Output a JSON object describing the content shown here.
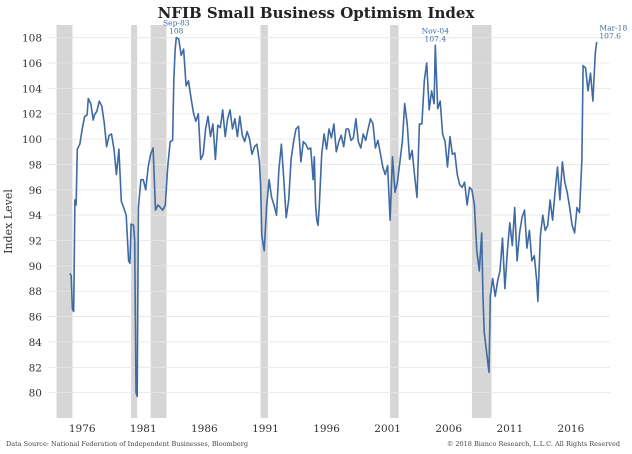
{
  "chart_data": {
    "type": "line",
    "title": "NFIB Small Business Optimism Index",
    "ylabel": "Index Level",
    "xlabel": "",
    "xlim": [
      1973.2,
      2019.2
    ],
    "ylim": [
      78,
      109
    ],
    "yticks": [
      80,
      82,
      84,
      86,
      88,
      90,
      92,
      94,
      96,
      98,
      100,
      102,
      104,
      106,
      108
    ],
    "xticks": [
      1976,
      1981,
      1986,
      1991,
      1996,
      2001,
      2006,
      2011,
      2016
    ],
    "xtick_labels": [
      "1976",
      "1981",
      "1986",
      "1991",
      "1996",
      "2001",
      "2006",
      "2011",
      "2016"
    ],
    "grid": true,
    "recessions": [
      [
        1973.9,
        1975.2
      ],
      [
        1980.0,
        1980.5
      ],
      [
        1981.6,
        1982.9
      ],
      [
        1990.6,
        1991.2
      ],
      [
        2001.2,
        2001.9
      ],
      [
        2007.9,
        2009.5
      ]
    ],
    "series": [
      {
        "color": "#3f6aa3",
        "points": [
          [
            1975.0,
            89.4
          ],
          [
            1975.1,
            89.2
          ],
          [
            1975.2,
            86.6
          ],
          [
            1975.3,
            86.4
          ],
          [
            1975.4,
            95.2
          ],
          [
            1975.5,
            94.8
          ],
          [
            1975.6,
            99.2
          ],
          [
            1975.8,
            99.6
          ],
          [
            1976.0,
            100.8
          ],
          [
            1976.2,
            101.8
          ],
          [
            1976.4,
            101.9
          ],
          [
            1976.5,
            103.2
          ],
          [
            1976.7,
            102.8
          ],
          [
            1976.9,
            101.5
          ],
          [
            1977.0,
            101.9
          ],
          [
            1977.2,
            102.2
          ],
          [
            1977.4,
            103.0
          ],
          [
            1977.6,
            102.6
          ],
          [
            1977.8,
            101.3
          ],
          [
            1978.0,
            99.4
          ],
          [
            1978.2,
            100.3
          ],
          [
            1978.4,
            100.4
          ],
          [
            1978.6,
            99.2
          ],
          [
            1978.8,
            97.2
          ],
          [
            1979.0,
            99.2
          ],
          [
            1979.2,
            95.1
          ],
          [
            1979.4,
            94.6
          ],
          [
            1979.6,
            94.0
          ],
          [
            1979.8,
            90.4
          ],
          [
            1979.9,
            90.2
          ],
          [
            1980.0,
            93.3
          ],
          [
            1980.2,
            93.2
          ],
          [
            1980.3,
            92.0
          ],
          [
            1980.4,
            80.0
          ],
          [
            1980.5,
            79.7
          ],
          [
            1980.6,
            94.6
          ],
          [
            1980.8,
            96.8
          ],
          [
            1981.0,
            96.8
          ],
          [
            1981.2,
            96.0
          ],
          [
            1981.4,
            97.8
          ],
          [
            1981.6,
            98.8
          ],
          [
            1981.8,
            99.3
          ],
          [
            1982.0,
            94.4
          ],
          [
            1982.2,
            94.8
          ],
          [
            1982.4,
            94.6
          ],
          [
            1982.6,
            94.4
          ],
          [
            1982.8,
            94.8
          ],
          [
            1983.0,
            97.8
          ],
          [
            1983.2,
            99.8
          ],
          [
            1983.4,
            99.9
          ],
          [
            1983.5,
            104.6
          ],
          [
            1983.6,
            107.0
          ],
          [
            1983.7,
            108.0
          ],
          [
            1983.9,
            107.9
          ],
          [
            1984.1,
            106.6
          ],
          [
            1984.3,
            107.1
          ],
          [
            1984.5,
            104.2
          ],
          [
            1984.7,
            104.6
          ],
          [
            1984.9,
            103.3
          ],
          [
            1985.1,
            102.1
          ],
          [
            1985.3,
            101.4
          ],
          [
            1985.5,
            102.0
          ],
          [
            1985.7,
            98.4
          ],
          [
            1985.9,
            98.8
          ],
          [
            1986.1,
            100.8
          ],
          [
            1986.3,
            101.8
          ],
          [
            1986.5,
            100.2
          ],
          [
            1986.7,
            101.2
          ],
          [
            1986.9,
            98.4
          ],
          [
            1987.1,
            101.1
          ],
          [
            1987.3,
            100.9
          ],
          [
            1987.5,
            102.3
          ],
          [
            1987.7,
            100.2
          ],
          [
            1987.9,
            101.6
          ],
          [
            1988.1,
            102.3
          ],
          [
            1988.3,
            100.8
          ],
          [
            1988.5,
            101.6
          ],
          [
            1988.7,
            100.2
          ],
          [
            1988.9,
            101.8
          ],
          [
            1989.1,
            100.3
          ],
          [
            1989.3,
            99.8
          ],
          [
            1989.5,
            100.6
          ],
          [
            1989.7,
            100.0
          ],
          [
            1989.9,
            98.8
          ],
          [
            1990.1,
            99.4
          ],
          [
            1990.3,
            99.6
          ],
          [
            1990.5,
            98.2
          ],
          [
            1990.6,
            96.4
          ],
          [
            1990.7,
            92.4
          ],
          [
            1990.8,
            91.8
          ],
          [
            1990.9,
            91.2
          ],
          [
            1991.1,
            94.8
          ],
          [
            1991.3,
            96.8
          ],
          [
            1991.5,
            95.4
          ],
          [
            1991.7,
            94.8
          ],
          [
            1991.9,
            94.0
          ],
          [
            1992.1,
            97.6
          ],
          [
            1992.3,
            99.6
          ],
          [
            1992.5,
            96.8
          ],
          [
            1992.7,
            93.8
          ],
          [
            1992.9,
            95.2
          ],
          [
            1993.1,
            98.4
          ],
          [
            1993.3,
            99.8
          ],
          [
            1993.5,
            100.8
          ],
          [
            1993.7,
            101.0
          ],
          [
            1993.9,
            98.2
          ],
          [
            1994.1,
            99.8
          ],
          [
            1994.3,
            99.6
          ],
          [
            1994.5,
            99.2
          ],
          [
            1994.7,
            99.3
          ],
          [
            1994.9,
            96.8
          ],
          [
            1995.0,
            98.6
          ],
          [
            1995.1,
            94.8
          ],
          [
            1995.2,
            93.6
          ],
          [
            1995.3,
            93.2
          ],
          [
            1995.4,
            94.6
          ],
          [
            1995.6,
            98.8
          ],
          [
            1995.8,
            100.4
          ],
          [
            1996.0,
            99.2
          ],
          [
            1996.2,
            100.8
          ],
          [
            1996.4,
            100.1
          ],
          [
            1996.6,
            101.2
          ],
          [
            1996.8,
            99.0
          ],
          [
            1997.0,
            99.8
          ],
          [
            1997.2,
            100.3
          ],
          [
            1997.4,
            99.4
          ],
          [
            1997.6,
            100.8
          ],
          [
            1997.8,
            100.8
          ],
          [
            1998.0,
            99.9
          ],
          [
            1998.2,
            100.1
          ],
          [
            1998.4,
            101.6
          ],
          [
            1998.6,
            99.8
          ],
          [
            1998.8,
            99.3
          ],
          [
            1999.0,
            100.4
          ],
          [
            1999.2,
            99.9
          ],
          [
            1999.4,
            100.8
          ],
          [
            1999.6,
            101.6
          ],
          [
            1999.8,
            101.2
          ],
          [
            2000.0,
            99.3
          ],
          [
            2000.2,
            99.9
          ],
          [
            2000.4,
            98.9
          ],
          [
            2000.6,
            97.8
          ],
          [
            2000.8,
            97.2
          ],
          [
            2001.0,
            97.9
          ],
          [
            2001.2,
            93.6
          ],
          [
            2001.4,
            98.6
          ],
          [
            2001.6,
            95.8
          ],
          [
            2001.8,
            96.6
          ],
          [
            2002.0,
            98.2
          ],
          [
            2002.2,
            99.8
          ],
          [
            2002.4,
            102.8
          ],
          [
            2002.6,
            101.2
          ],
          [
            2002.8,
            98.4
          ],
          [
            2003.0,
            99.1
          ],
          [
            2003.2,
            97.2
          ],
          [
            2003.4,
            95.4
          ],
          [
            2003.6,
            101.2
          ],
          [
            2003.8,
            101.2
          ],
          [
            2004.0,
            104.6
          ],
          [
            2004.2,
            106.0
          ],
          [
            2004.4,
            102.3
          ],
          [
            2004.6,
            103.8
          ],
          [
            2004.8,
            102.8
          ],
          [
            2004.9,
            107.4
          ],
          [
            2005.1,
            102.4
          ],
          [
            2005.3,
            103.0
          ],
          [
            2005.5,
            100.4
          ],
          [
            2005.7,
            99.8
          ],
          [
            2005.9,
            97.8
          ],
          [
            2006.1,
            100.2
          ],
          [
            2006.3,
            98.8
          ],
          [
            2006.5,
            98.9
          ],
          [
            2006.7,
            97.2
          ],
          [
            2006.9,
            96.4
          ],
          [
            2007.1,
            96.2
          ],
          [
            2007.3,
            96.6
          ],
          [
            2007.5,
            94.8
          ],
          [
            2007.7,
            96.2
          ],
          [
            2007.9,
            96.0
          ],
          [
            2008.1,
            94.8
          ],
          [
            2008.3,
            91.2
          ],
          [
            2008.5,
            89.6
          ],
          [
            2008.7,
            92.6
          ],
          [
            2008.8,
            87.8
          ],
          [
            2008.9,
            84.8
          ],
          [
            2009.1,
            83.2
          ],
          [
            2009.3,
            81.6
          ],
          [
            2009.4,
            87.6
          ],
          [
            2009.6,
            89.0
          ],
          [
            2009.8,
            87.6
          ],
          [
            2010.0,
            88.8
          ],
          [
            2010.2,
            89.6
          ],
          [
            2010.4,
            92.2
          ],
          [
            2010.6,
            88.2
          ],
          [
            2010.8,
            91.2
          ],
          [
            2011.0,
            93.4
          ],
          [
            2011.2,
            91.6
          ],
          [
            2011.4,
            94.6
          ],
          [
            2011.6,
            90.4
          ],
          [
            2011.8,
            92.6
          ],
          [
            2012.0,
            93.8
          ],
          [
            2012.2,
            94.4
          ],
          [
            2012.4,
            91.4
          ],
          [
            2012.6,
            92.8
          ],
          [
            2012.8,
            90.4
          ],
          [
            2013.0,
            90.8
          ],
          [
            2013.2,
            88.8
          ],
          [
            2013.3,
            87.2
          ],
          [
            2013.5,
            92.4
          ],
          [
            2013.7,
            94.0
          ],
          [
            2013.9,
            92.8
          ],
          [
            2014.1,
            93.2
          ],
          [
            2014.3,
            95.2
          ],
          [
            2014.5,
            93.6
          ],
          [
            2014.7,
            95.8
          ],
          [
            2014.9,
            97.8
          ],
          [
            2015.1,
            95.2
          ],
          [
            2015.3,
            98.2
          ],
          [
            2015.5,
            96.6
          ],
          [
            2015.7,
            95.8
          ],
          [
            2015.9,
            94.6
          ],
          [
            2016.1,
            93.2
          ],
          [
            2016.3,
            92.6
          ],
          [
            2016.5,
            94.6
          ],
          [
            2016.7,
            94.2
          ],
          [
            2016.9,
            98.4
          ],
          [
            2017.0,
            105.8
          ],
          [
            2017.2,
            105.6
          ],
          [
            2017.4,
            103.8
          ],
          [
            2017.6,
            105.2
          ],
          [
            2017.8,
            103.0
          ],
          [
            2018.0,
            106.8
          ],
          [
            2018.1,
            107.6
          ],
          [
            2018.17,
            107.6
          ]
        ]
      }
    ],
    "annotations": [
      {
        "lines": [
          "Sep-83",
          "108"
        ],
        "x": 1983.7,
        "y": 108.0,
        "anchor": "middle"
      },
      {
        "lines": [
          "Nov-04",
          "107.4"
        ],
        "x": 2004.9,
        "y": 107.4,
        "anchor": "middle"
      },
      {
        "lines": [
          "Mar-18",
          "107.6"
        ],
        "x": 2018.17,
        "y": 107.6,
        "anchor": "start"
      }
    ]
  },
  "footer": {
    "source": "Data Source: National Federation of Independent Businesses, Bloomberg",
    "copyright": "© 2018 Bianco Research, L.L.C. All Rights Reserved"
  }
}
